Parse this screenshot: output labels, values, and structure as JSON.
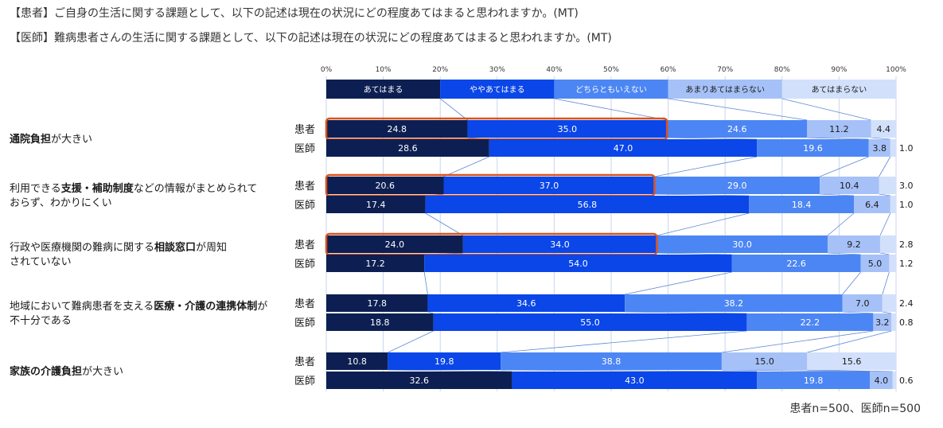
{
  "titles": [
    "【患者】ご自身の生活に関する課題として、以下の記述は現在の状況にどの程度あてはまると思われますか。(MT)",
    "【医師】難病患者さんの生活に関する課題として、以下の記述は現在の状況にどの程度あてはまると思われますか。(MT)"
  ],
  "note": "患者n=500、医師n=500",
  "colors": [
    "#0d1f52",
    "#0a46e8",
    "#4c86f4",
    "#a6c1f7",
    "#d2e0fb"
  ],
  "highlight_color": "#d9531e",
  "chart_data": {
    "type": "bar",
    "stacked": true,
    "orientation": "horizontal",
    "x_ticks": [
      "0%",
      "10%",
      "20%",
      "30%",
      "40%",
      "50%",
      "60%",
      "70%",
      "80%",
      "90%",
      "100%"
    ],
    "xlim": [
      0,
      100
    ],
    "legend": [
      "あてはまる",
      "ややあてはまる",
      "どちらともいえない",
      "あまりあてはまらない",
      "あてはまらない"
    ],
    "items": [
      {
        "label_parts": [
          [
            {
              "t": "通院負担",
              "b": true
            },
            {
              "t": "が大きい",
              "b": false
            }
          ]
        ],
        "rows": [
          {
            "name": "患者",
            "values": [
              24.8,
              35.0,
              24.6,
              11.2,
              4.4
            ],
            "highlight": true
          },
          {
            "name": "医師",
            "values": [
              28.6,
              47.0,
              19.6,
              3.8,
              1.0
            ],
            "highlight": false
          }
        ]
      },
      {
        "label_parts": [
          [
            {
              "t": "利用できる",
              "b": false
            },
            {
              "t": "支援・補助制度",
              "b": true
            },
            {
              "t": "などの情報がまとめられて",
              "b": false
            }
          ],
          [
            {
              "t": "おらず、わかりにくい",
              "b": false
            }
          ]
        ],
        "rows": [
          {
            "name": "患者",
            "values": [
              20.6,
              37.0,
              29.0,
              10.4,
              3.0
            ],
            "highlight": true
          },
          {
            "name": "医師",
            "values": [
              17.4,
              56.8,
              18.4,
              6.4,
              1.0
            ],
            "highlight": false
          }
        ]
      },
      {
        "label_parts": [
          [
            {
              "t": "行政や医療機関の難病に関する",
              "b": false
            },
            {
              "t": "相談窓口",
              "b": true
            },
            {
              "t": "が周知",
              "b": false
            }
          ],
          [
            {
              "t": "されていない",
              "b": false
            }
          ]
        ],
        "rows": [
          {
            "name": "患者",
            "values": [
              24.0,
              34.0,
              30.0,
              9.2,
              2.8
            ],
            "highlight": true
          },
          {
            "name": "医師",
            "values": [
              17.2,
              54.0,
              22.6,
              5.0,
              1.2
            ],
            "highlight": false
          }
        ]
      },
      {
        "label_parts": [
          [
            {
              "t": "地域において難病患者を支える",
              "b": false
            },
            {
              "t": "医療・介護の連携体制",
              "b": true
            },
            {
              "t": "が",
              "b": false
            }
          ],
          [
            {
              "t": "不十分である",
              "b": false
            }
          ]
        ],
        "rows": [
          {
            "name": "患者",
            "values": [
              17.8,
              34.6,
              38.2,
              7.0,
              2.4
            ],
            "highlight": false
          },
          {
            "name": "医師",
            "values": [
              18.8,
              55.0,
              22.2,
              3.2,
              0.8
            ],
            "highlight": false
          }
        ]
      },
      {
        "label_parts": [
          [
            {
              "t": "家族の介護負担",
              "b": true
            },
            {
              "t": "が大きい",
              "b": false
            }
          ]
        ],
        "rows": [
          {
            "name": "患者",
            "values": [
              10.8,
              19.8,
              38.8,
              15.0,
              15.6
            ],
            "highlight": false
          },
          {
            "name": "医師",
            "values": [
              32.6,
              43.0,
              19.8,
              4.0,
              0.6
            ],
            "highlight": false
          }
        ]
      }
    ]
  }
}
